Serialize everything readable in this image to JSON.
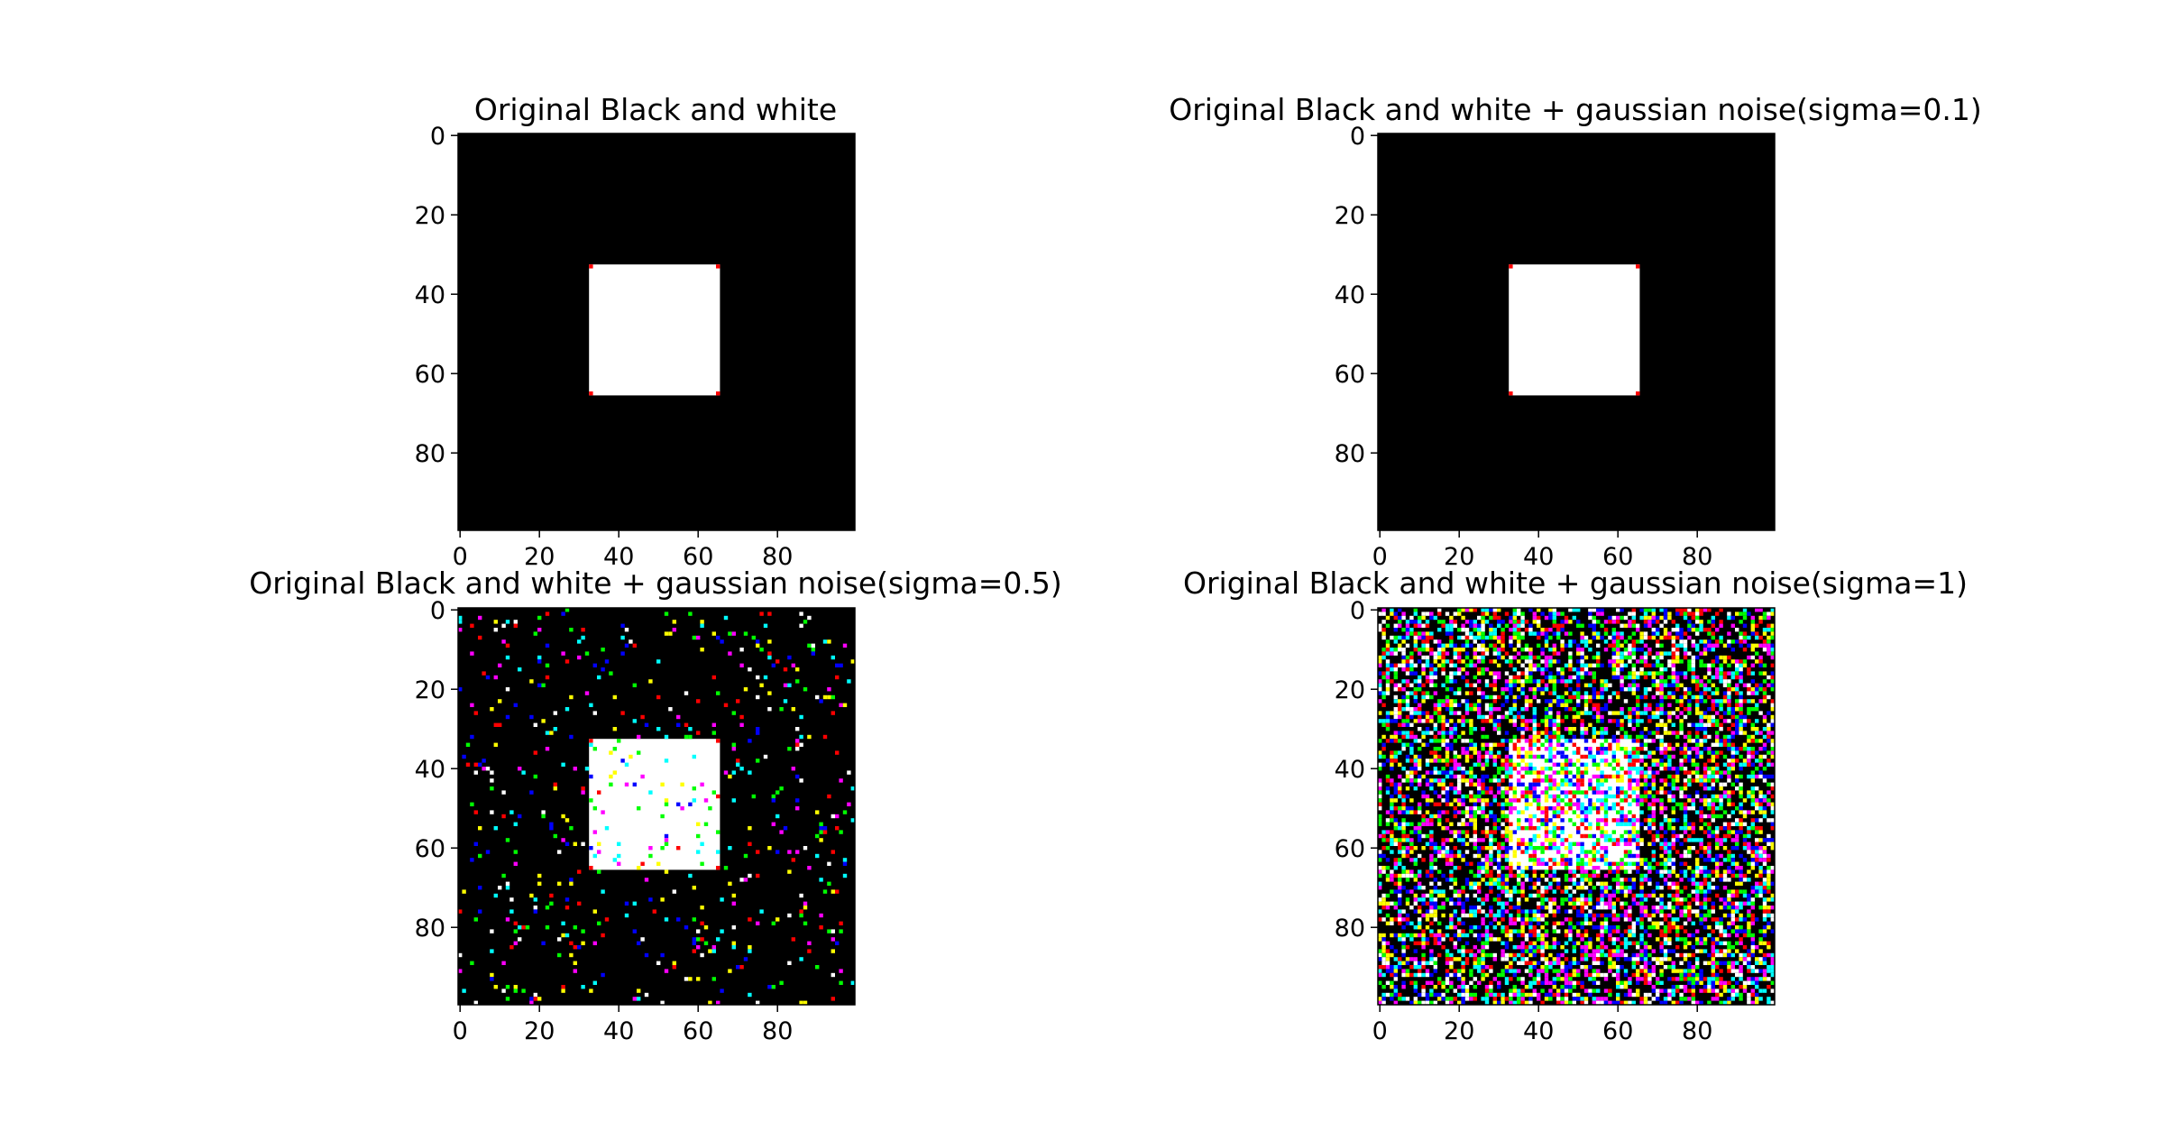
{
  "chart_data": [
    {
      "type": "heatmap",
      "title": "Original Black and white",
      "sigma": 0,
      "image_size": [
        100,
        100
      ],
      "background_color": "#000000",
      "square": {
        "x0": 33,
        "y0": 33,
        "x1": 66,
        "y1": 66,
        "color": "#ffffff"
      },
      "xticks": [
        "0",
        "20",
        "40",
        "60",
        "80"
      ],
      "yticks": [
        "0",
        "20",
        "40",
        "60",
        "80"
      ],
      "xlim": [
        -0.5,
        99.5
      ],
      "ylim": [
        99.5,
        -0.5
      ],
      "noise_density": 0
    },
    {
      "type": "heatmap",
      "title": "Original Black and white + gaussian noise(sigma=0.1)",
      "sigma": 0.1,
      "image_size": [
        100,
        100
      ],
      "background_color": "#000000",
      "square": {
        "x0": 33,
        "y0": 33,
        "x1": 66,
        "y1": 66,
        "color": "#ffffff"
      },
      "xticks": [
        "0",
        "20",
        "40",
        "60",
        "80"
      ],
      "yticks": [
        "0",
        "20",
        "40",
        "60",
        "80"
      ],
      "xlim": [
        -0.5,
        99.5
      ],
      "ylim": [
        99.5,
        -0.5
      ],
      "noise_density": 0
    },
    {
      "type": "heatmap",
      "title": "Original Black and white + gaussian noise(sigma=0.5)",
      "sigma": 0.5,
      "image_size": [
        100,
        100
      ],
      "background_color": "#000000",
      "square": {
        "x0": 33,
        "y0": 33,
        "x1": 66,
        "y1": 66,
        "color": "#ffffff"
      },
      "xticks": [
        "0",
        "20",
        "40",
        "60",
        "80"
      ],
      "yticks": [
        "0",
        "20",
        "40",
        "60",
        "80"
      ],
      "xlim": [
        -0.5,
        99.5
      ],
      "ylim": [
        99.5,
        -0.5
      ],
      "noise_density": 0.06
    },
    {
      "type": "heatmap",
      "title": "Original Black and white + gaussian noise(sigma=1)",
      "sigma": 1,
      "image_size": [
        100,
        100
      ],
      "background_color": "#000000",
      "square": {
        "x0": 33,
        "y0": 33,
        "x1": 66,
        "y1": 66,
        "color": "#ffffff"
      },
      "xticks": [
        "0",
        "20",
        "40",
        "60",
        "80"
      ],
      "yticks": [
        "0",
        "20",
        "40",
        "60",
        "80"
      ],
      "xlim": [
        -0.5,
        99.5
      ],
      "ylim": [
        99.5,
        -0.5
      ],
      "noise_density": 0.55
    }
  ],
  "colors": {
    "noise_on_black": [
      "#ff0000",
      "#00ff00",
      "#0000ff",
      "#ffff00",
      "#ff00ff",
      "#00ffff",
      "#ffffff"
    ],
    "noise_on_white": [
      "#ffff00",
      "#ff00ff",
      "#00ffff",
      "#ff0000",
      "#00ff00",
      "#0000ff"
    ],
    "corner_marker": "#ff0000"
  }
}
